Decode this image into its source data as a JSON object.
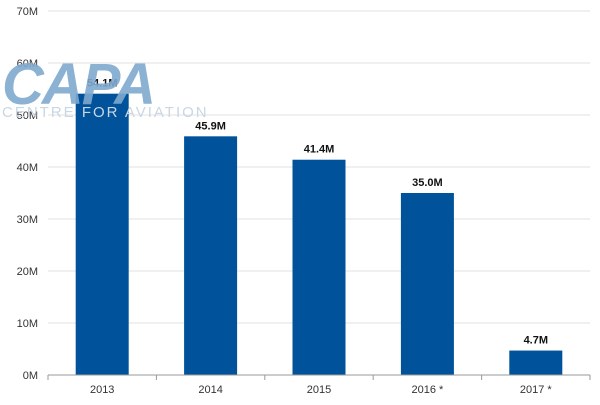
{
  "watermark": {
    "logo_text": "CAPA",
    "subtitle": "CENTRE FOR AVIATION",
    "colors": {
      "logo": "#7fa9cf",
      "text": "#c9d6e3"
    }
  },
  "chart_data": {
    "type": "bar",
    "categories": [
      "2013",
      "2014",
      "2015",
      "2016 *",
      "2017 *"
    ],
    "values": [
      54.1,
      45.9,
      41.4,
      35.0,
      4.7
    ],
    "data_labels": [
      "54.1M",
      "45.9M",
      "41.4M",
      "35.0M",
      "4.7M"
    ],
    "y_ticks": [
      "0M",
      "10M",
      "20M",
      "30M",
      "40M",
      "50M",
      "60M",
      "70M"
    ],
    "ylim": [
      0,
      70
    ],
    "title": "",
    "xlabel": "",
    "ylabel": "",
    "grid": true,
    "legend": "none",
    "colors": {
      "bar": "#00529b",
      "grid": "#e1e1e1",
      "axis_text": "#333333",
      "axis_line": "#999999"
    }
  }
}
